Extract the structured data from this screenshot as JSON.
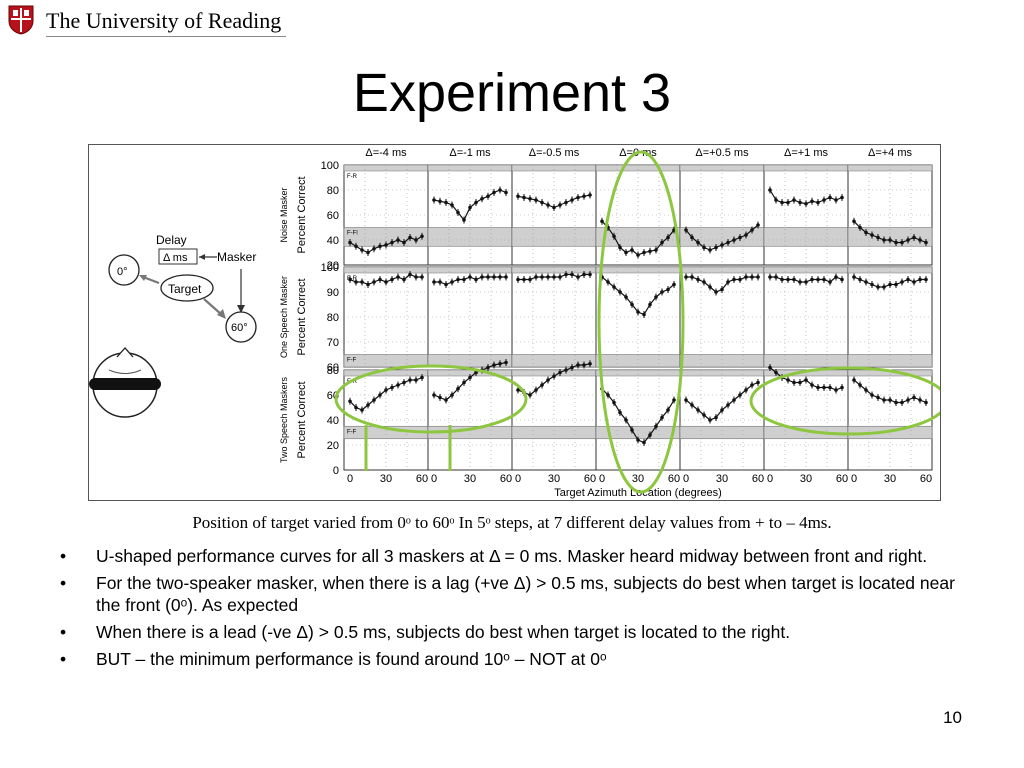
{
  "header": {
    "institution": "The University of Reading"
  },
  "slide": {
    "title": "Experiment 3",
    "caption": "Position of target varied from 0ᵒ to 60ᵒ In 5ᵒ steps, at 7 different delay values from + to – 4ms.",
    "page_number": "10"
  },
  "diagram": {
    "delay_label": "Delay",
    "delta_ms": "Δ ms",
    "masker_label": "Masker",
    "zero_label": "0°",
    "target_label": "Target",
    "sixty_label": "60°"
  },
  "figure": {
    "x_axis_label": "Target Azimuth Location (degrees)",
    "x_tick_labels": [
      "0",
      "30",
      "60"
    ],
    "conditions": [
      "Δ=-4 ms",
      "Δ=-1 ms",
      "Δ=-0.5 ms",
      "Δ=0 ms",
      "Δ=+0.5 ms",
      "Δ=+1 ms",
      "Δ=+4 ms"
    ],
    "rows": [
      {
        "masker": "Noise Masker",
        "ylabel": "Percent Correct",
        "yticks": [
          "100",
          "80",
          "60",
          "40",
          "20"
        ],
        "band_label": "F-Fl",
        "top_label": "F-R"
      },
      {
        "masker": "One Speech Masker",
        "ylabel": "Percent Correct",
        "yticks": [
          "100",
          "90",
          "80",
          "70",
          "60"
        ],
        "band_label": "F-F",
        "top_label": "F-R"
      },
      {
        "masker": "Two Speech Maskers",
        "ylabel": "Percent Correct",
        "yticks": [
          "80",
          "60",
          "40",
          "20",
          "0"
        ],
        "band_label": "F-F",
        "top_label": "F-R"
      }
    ],
    "highlight_color": "#8dc63f"
  },
  "chart_data": {
    "type": "line",
    "x": [
      0,
      5,
      10,
      15,
      20,
      25,
      30,
      35,
      40,
      45,
      50,
      55,
      60
    ],
    "xlabel": "Target Azimuth Location (degrees)",
    "panels": [
      {
        "row": "Noise Masker",
        "series": [
          {
            "name": "Δ=-4 ms",
            "values": [
              38,
              35,
              32,
              30,
              33,
              35,
              36,
              38,
              40,
              38,
              42,
              40,
              43
            ]
          },
          {
            "name": "Δ=-1 ms",
            "values": [
              72,
              71,
              70,
              68,
              62,
              56,
              66,
              70,
              73,
              75,
              78,
              80,
              78
            ]
          },
          {
            "name": "Δ=-0.5 ms",
            "values": [
              75,
              74,
              73,
              72,
              70,
              68,
              66,
              68,
              70,
              72,
              74,
              75,
              76
            ]
          },
          {
            "name": "Δ=0 ms",
            "values": [
              55,
              50,
              43,
              34,
              30,
              32,
              28,
              30,
              31,
              32,
              38,
              42,
              48
            ]
          },
          {
            "name": "Δ=+0.5 ms",
            "values": [
              48,
              42,
              38,
              34,
              32,
              34,
              36,
              38,
              40,
              42,
              44,
              48,
              52
            ]
          },
          {
            "name": "Δ=+1 ms",
            "values": [
              80,
              72,
              70,
              70,
              72,
              70,
              69,
              71,
              70,
              72,
              74,
              72,
              74
            ]
          },
          {
            "name": "Δ=+4 ms",
            "values": [
              55,
              50,
              46,
              44,
              42,
              40,
              40,
              38,
              38,
              40,
              42,
              40,
              38
            ]
          }
        ]
      },
      {
        "row": "One Speech Masker",
        "series": [
          {
            "name": "Δ=-4 ms",
            "values": [
              95,
              94,
              94,
              93,
              94,
              95,
              94,
              95,
              96,
              95,
              97,
              96,
              96
            ]
          },
          {
            "name": "Δ=-1 ms",
            "values": [
              94,
              94,
              93,
              94,
              95,
              95,
              96,
              95,
              96,
              96,
              96,
              96,
              96
            ]
          },
          {
            "name": "Δ=-0.5 ms",
            "values": [
              95,
              95,
              95,
              96,
              96,
              96,
              96,
              96,
              97,
              97,
              96,
              97,
              97
            ]
          },
          {
            "name": "Δ=0 ms",
            "values": [
              96,
              94,
              92,
              90,
              88,
              85,
              82,
              81,
              85,
              88,
              90,
              91,
              93
            ]
          },
          {
            "name": "Δ=+0.5 ms",
            "values": [
              96,
              96,
              95,
              94,
              92,
              90,
              91,
              94,
              95,
              95,
              96,
              96,
              96
            ]
          },
          {
            "name": "Δ=+1 ms",
            "values": [
              96,
              96,
              95,
              95,
              95,
              94,
              94,
              95,
              95,
              95,
              94,
              96,
              95
            ]
          },
          {
            "name": "Δ=+4 ms",
            "values": [
              96,
              95,
              94,
              93,
              92,
              92,
              93,
              93,
              94,
              95,
              94,
              95,
              95
            ]
          }
        ]
      },
      {
        "row": "Two Speech Maskers",
        "series": [
          {
            "name": "Δ=-4 ms",
            "values": [
              55,
              50,
              48,
              52,
              56,
              60,
              64,
              66,
              68,
              70,
              72,
              72,
              74
            ]
          },
          {
            "name": "Δ=-1 ms",
            "values": [
              60,
              58,
              56,
              60,
              65,
              70,
              74,
              78,
              80,
              82,
              84,
              85,
              86
            ]
          },
          {
            "name": "Δ=-0.5 ms",
            "values": [
              64,
              62,
              60,
              64,
              68,
              72,
              75,
              78,
              80,
              82,
              84,
              84,
              85
            ]
          },
          {
            "name": "Δ=0 ms",
            "values": [
              65,
              60,
              54,
              46,
              40,
              32,
              24,
              22,
              28,
              35,
              42,
              48,
              56
            ]
          },
          {
            "name": "Δ=+0.5 ms",
            "values": [
              56,
              52,
              48,
              44,
              40,
              42,
              48,
              52,
              56,
              60,
              64,
              68,
              70
            ]
          },
          {
            "name": "Δ=+1 ms",
            "values": [
              82,
              78,
              74,
              72,
              70,
              70,
              72,
              68,
              66,
              66,
              66,
              64,
              66
            ]
          },
          {
            "name": "Δ=+4 ms",
            "values": [
              72,
              68,
              64,
              60,
              58,
              56,
              56,
              54,
              54,
              56,
              58,
              56,
              54
            ]
          }
        ]
      }
    ]
  },
  "bullets": [
    {
      "text": "U-shaped performance curves for all 3 maskers at Δ = 0 ms. Masker heard midway between front and right."
    },
    {
      "text": "For the two-speaker masker, when there is a lag (+ve Δ) > 0.5 ms, subjects do best when target is located near the front (0ᵒ). As expected"
    },
    {
      "text": "When there is a lead (-ve Δ) > 0.5 ms, subjects do best when target is located to the right."
    },
    {
      "text": "BUT – the minimum performance is found around 10ᵒ – NOT at 0ᵒ"
    }
  ]
}
